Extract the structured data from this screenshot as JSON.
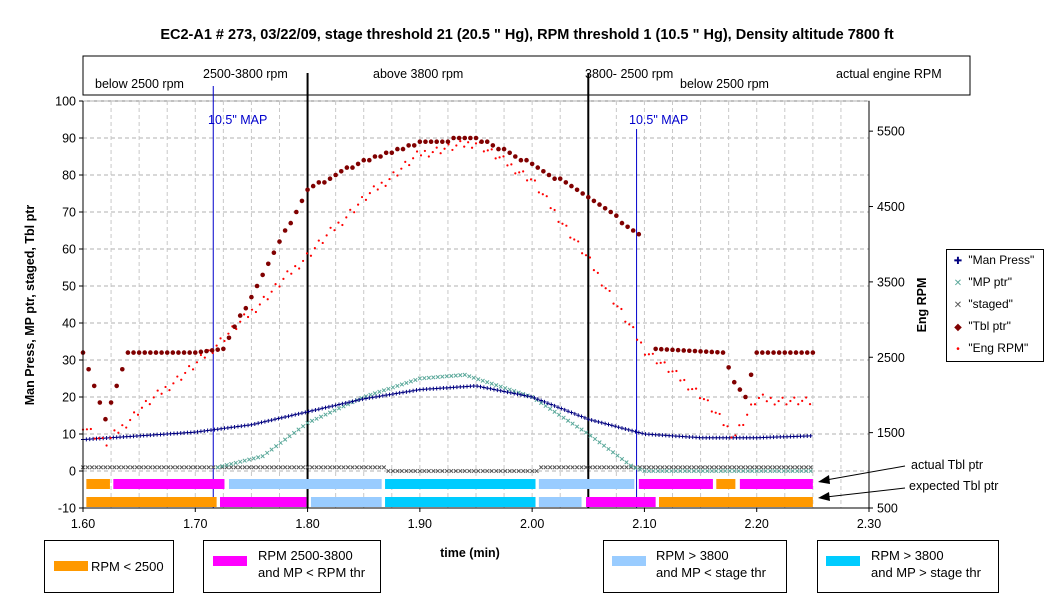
{
  "chart_data": {
    "type": "scatter",
    "title": "EC2-A1  # 273,  03/22/09,  stage threshold 21 (20.5 \" Hg),  RPM threshold 1 (10.5 \" Hg),  Density altitude 7800 ft",
    "xlabel": "time (min)",
    "ylabel": "Man Press, MP ptr, staged, Tbl ptr",
    "y2label": "Eng RPM",
    "xlim": [
      1.6,
      2.3
    ],
    "ylim": [
      -10,
      100
    ],
    "y2lim": [
      500,
      5900
    ],
    "xticks": [
      "1.60",
      "1.70",
      "1.80",
      "1.90",
      "2.00",
      "2.10",
      "2.20",
      "2.30"
    ],
    "yticks": [
      "-10",
      "0",
      "10",
      "20",
      "30",
      "40",
      "50",
      "60",
      "70",
      "80",
      "90",
      "100"
    ],
    "y2ticks": [
      "500",
      "1500",
      "2500",
      "3500",
      "4500",
      "5500"
    ],
    "grid": true,
    "legend_position": "right",
    "series": [
      {
        "name": "\"Man Press\"",
        "marker": "+",
        "color": "#000080",
        "x": [
          1.6,
          1.65,
          1.7,
          1.75,
          1.8,
          1.85,
          1.9,
          1.95,
          2.0,
          2.05,
          2.1,
          2.15,
          2.2,
          2.25
        ],
        "values": [
          8.5,
          9.5,
          10.5,
          12.5,
          16,
          19.5,
          22,
          23,
          20,
          14,
          10,
          9,
          9,
          9.5
        ]
      },
      {
        "name": "\"MP ptr\"",
        "marker": "x",
        "color": "#5aa89a",
        "x": [
          1.72,
          1.76,
          1.8,
          1.85,
          1.9,
          1.94,
          2.0,
          2.05,
          2.09,
          2.1,
          2.25
        ],
        "values": [
          1,
          4,
          13,
          20,
          25,
          26,
          20,
          10,
          1,
          0,
          0
        ]
      },
      {
        "name": "\"staged\"",
        "marker": "x",
        "color": "#555555",
        "x": [
          1.6,
          1.87,
          1.871,
          2.005,
          2.006,
          2.25
        ],
        "values": [
          1,
          1,
          0,
          0,
          1,
          1
        ]
      },
      {
        "name": "\"Tbl ptr\"",
        "marker": "diamond",
        "color": "#800000",
        "x": [
          1.6,
          1.62,
          1.64,
          1.7,
          1.725,
          1.8,
          1.85,
          1.9,
          1.95,
          2.0,
          2.05,
          2.1,
          2.11,
          2.17,
          2.18,
          2.19,
          2.2,
          2.25
        ],
        "values": [
          32,
          14,
          32,
          32,
          33,
          76,
          84,
          89,
          90,
          83,
          74,
          63,
          33,
          32,
          24,
          20,
          32,
          32
        ]
      },
      {
        "name": "\"Eng RPM\"",
        "marker": "dot",
        "color": "#ff0000",
        "x": [
          1.6,
          1.62,
          1.65,
          1.7,
          1.75,
          1.8,
          1.85,
          1.9,
          1.95,
          2.0,
          2.05,
          2.1,
          2.15,
          2.18,
          2.2,
          2.25
        ],
        "values": [
          1600,
          1350,
          1800,
          2400,
          3100,
          3850,
          4600,
          5200,
          5350,
          4850,
          3800,
          2600,
          2000,
          1450,
          1950,
          1900
        ]
      }
    ],
    "annotations": {
      "phase_labels": [
        "below 2500 rpm",
        "2500-3800 rpm",
        "above 3800 rpm",
        "3800- 2500 rpm",
        "below 2500 rpm",
        "actual engine RPM"
      ],
      "phase_boundaries": [
        1.8,
        2.05
      ],
      "map_lines": [
        1.716,
        2.093
      ],
      "map_label": "10.5\" MAP",
      "actual_tbl_ptr": "actual Tbl ptr",
      "expected_tbl_ptr": "expected Tbl ptr",
      "bar_rows": {
        "actual": [
          {
            "c": "orange",
            "x0": 1.603,
            "x1": 1.624
          },
          {
            "c": "magenta",
            "x0": 1.627,
            "x1": 1.726
          },
          {
            "c": "lightblue",
            "x0": 1.73,
            "x1": 1.866
          },
          {
            "c": "cyan",
            "x0": 1.869,
            "x1": 2.003
          },
          {
            "c": "lightblue",
            "x0": 2.006,
            "x1": 2.091
          },
          {
            "c": "magenta",
            "x0": 2.095,
            "x1": 2.161
          },
          {
            "c": "orange",
            "x0": 2.164,
            "x1": 2.181
          },
          {
            "c": "magenta",
            "x0": 2.185,
            "x1": 2.25
          }
        ],
        "expected": [
          {
            "c": "orange",
            "x0": 1.603,
            "x1": 1.719
          },
          {
            "c": "magenta",
            "x0": 1.722,
            "x1": 1.799
          },
          {
            "c": "lightblue",
            "x0": 1.803,
            "x1": 1.866
          },
          {
            "c": "cyan",
            "x0": 1.869,
            "x1": 2.003
          },
          {
            "c": "lightblue",
            "x0": 2.006,
            "x1": 2.044
          },
          {
            "c": "magenta",
            "x0": 2.048,
            "x1": 2.11
          },
          {
            "c": "orange",
            "x0": 2.113,
            "x1": 2.25
          }
        ]
      }
    },
    "colors": {
      "orange": "#ff9900",
      "magenta": "#ff00ff",
      "lightblue": "#99ccff",
      "cyan": "#00ccff"
    }
  },
  "color_key": [
    {
      "color": "#ff9900",
      "line1": "RPM < 2500",
      "line2": ""
    },
    {
      "color": "#ff00ff",
      "line1": "RPM 2500-3800",
      "line2": "and MP < RPM thr"
    },
    {
      "color": "#99ccff",
      "line1": "RPM > 3800",
      "line2": "and MP < stage thr"
    },
    {
      "color": "#00ccff",
      "line1": "RPM > 3800",
      "line2": "and MP > stage thr"
    }
  ]
}
